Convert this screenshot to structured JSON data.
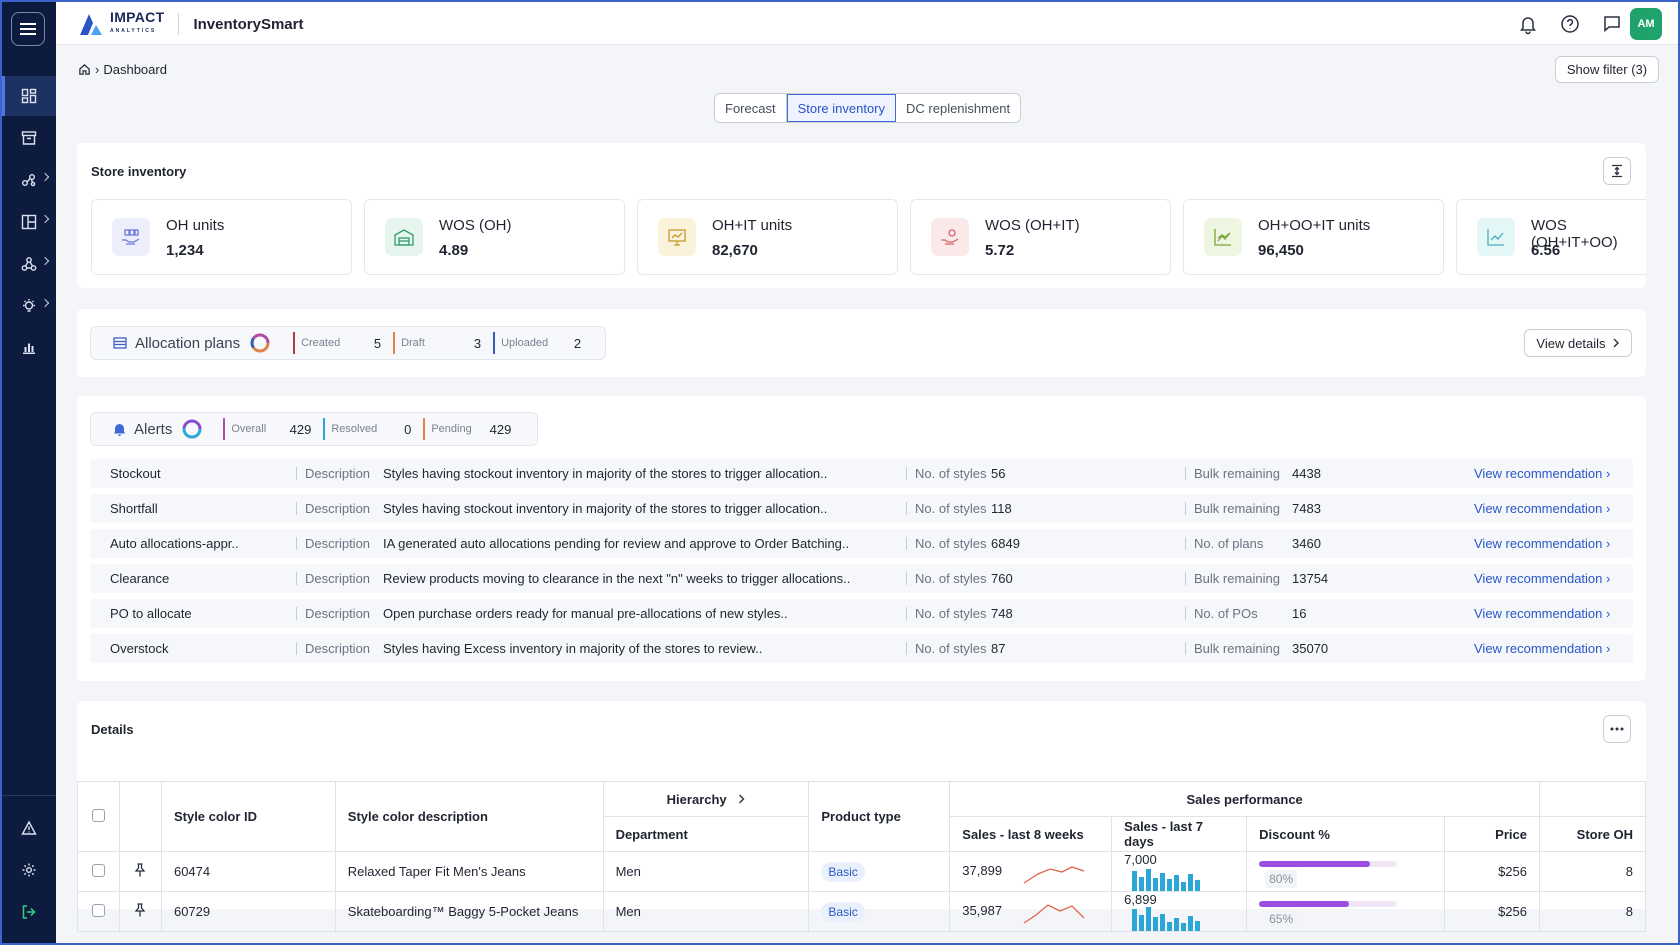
{
  "app": {
    "brand_top": "IMPACT",
    "brand_bottom": "ANALYTICS",
    "name": "InventorySmart",
    "user_initials": "AM"
  },
  "breadcrumb": {
    "current": "Dashboard"
  },
  "header_buttons": {
    "show_filter": "Show filter (3)"
  },
  "tabs": [
    {
      "label": "Forecast"
    },
    {
      "label": "Store inventory"
    },
    {
      "label": "DC replenishment"
    }
  ],
  "store_inventory": {
    "title": "Store inventory",
    "kpis": [
      {
        "label": "OH units",
        "value": "1,234"
      },
      {
        "label": "WOS (OH)",
        "value": "4.89"
      },
      {
        "label": "OH+IT units",
        "value": "82,670"
      },
      {
        "label": "WOS (OH+IT)",
        "value": "5.72"
      },
      {
        "label": "OH+OO+IT units",
        "value": "96,450"
      },
      {
        "label": "WOS (OH+IT+OO)",
        "value": "6.56"
      }
    ]
  },
  "allocation": {
    "title": "Allocation plans",
    "stats": [
      {
        "label": "Created",
        "value": "5",
        "color": "#b23a3a"
      },
      {
        "label": "Draft",
        "value": "3",
        "color": "#e0834a"
      },
      {
        "label": "Uploaded",
        "value": "2",
        "color": "#3a5bb3"
      }
    ],
    "view_details": "View details"
  },
  "alerts": {
    "title": "Alerts",
    "stats": [
      {
        "label": "Overall",
        "value": "429",
        "color": "#b24aa6"
      },
      {
        "label": "Resolved",
        "value": "0",
        "color": "#2aa7d6"
      },
      {
        "label": "Pending",
        "value": "429",
        "color": "#e0834a"
      }
    ],
    "desc_label": "Description",
    "link_label": "View recommendation ›",
    "rows": [
      {
        "name": "Stockout",
        "desc": "Styles having stockout inventory in majority of the stores to trigger allocation..",
        "m1_label": "No. of styles",
        "m1": "56",
        "m2_label": "Bulk remaining",
        "m2": "4438"
      },
      {
        "name": "Shortfall",
        "desc": "Styles having stockout inventory in majority of the stores to trigger allocation..",
        "m1_label": "No. of styles",
        "m1": "118",
        "m2_label": "Bulk remaining",
        "m2": "7483"
      },
      {
        "name": "Auto allocations-appr..",
        "desc": "IA generated auto allocations pending for review and approve to Order Batching..",
        "m1_label": "No. of styles",
        "m1": "6849",
        "m2_label": "No. of plans",
        "m2": "3460"
      },
      {
        "name": "Clearance",
        "desc": "Review products moving to clearance in the next \"n\" weeks to trigger allocations..",
        "m1_label": "No. of styles",
        "m1": "760",
        "m2_label": "Bulk remaining",
        "m2": "13754"
      },
      {
        "name": "PO to allocate",
        "desc": "Open purchase orders ready for manual pre-allocations of new styles..",
        "m1_label": "No. of styles",
        "m1": "748",
        "m2_label": "No. of POs",
        "m2": "16"
      },
      {
        "name": "Overstock",
        "desc": "Styles having Excess inventory in majority of the stores to review..",
        "m1_label": "No. of styles",
        "m1": "87",
        "m2_label": "Bulk remaining",
        "m2": "35070"
      }
    ]
  },
  "details": {
    "title": "Details",
    "headers": {
      "style_id": "Style color ID",
      "style_desc": "Style color description",
      "hierarchy": "Hierarchy",
      "department": "Department",
      "product_type": "Product type",
      "sales_perf": "Sales performance",
      "sales_8w": "Sales - last 8 weeks",
      "sales_7d": "Sales - last 7 days",
      "discount": "Discount %",
      "price": "Price",
      "store_oh": "Store OH"
    },
    "rows": [
      {
        "id": "60474",
        "desc": "Relaxed Taper Fit Men's Jeans",
        "dept": "Men",
        "ptype": "Basic",
        "s8w": "37,899",
        "s7d": "7,000",
        "discount": "80%",
        "discount_value": 0.8,
        "price": "$256",
        "oh": "8"
      },
      {
        "id": "60729",
        "desc": "Skateboarding™ Baggy 5-Pocket Jeans",
        "dept": "Men",
        "ptype": "Basic",
        "s8w": "35,987",
        "s7d": "6,899",
        "discount": "65%",
        "discount_value": 0.65,
        "price": "$256",
        "oh": "8"
      }
    ]
  }
}
